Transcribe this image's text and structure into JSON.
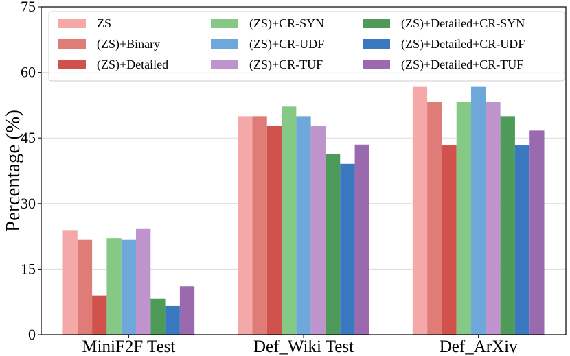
{
  "chart_data": {
    "type": "bar",
    "title": "",
    "xlabel": "",
    "ylabel": "Percentage (%)",
    "ylim": [
      0,
      75
    ],
    "yticks": [
      0,
      15,
      30,
      45,
      60,
      75
    ],
    "grid": true,
    "legend_position": "top",
    "categories": [
      "MiniF2F Test",
      "Def_Wiki Test",
      "Def_ArXiv"
    ],
    "series": [
      {
        "name": "ZS",
        "color": "#f4a9a8",
        "values": [
          23.8,
          50.0,
          56.7
        ]
      },
      {
        "name": "(ZS)+Binary",
        "color": "#e07c78",
        "values": [
          21.7,
          50.0,
          53.3
        ]
      },
      {
        "name": "(ZS)+Detailed",
        "color": "#d1514d",
        "values": [
          9.0,
          47.8,
          43.3
        ]
      },
      {
        "name": "(ZS)+CR-SYN",
        "color": "#86c987",
        "values": [
          22.1,
          52.2,
          53.3
        ]
      },
      {
        "name": "(ZS)+CR-UDF",
        "color": "#6ea8da",
        "values": [
          21.7,
          50.0,
          56.7
        ]
      },
      {
        "name": "(ZS)+CR-TUF",
        "color": "#bf93cc",
        "values": [
          24.2,
          47.8,
          53.3
        ]
      },
      {
        "name": "(ZS)+Detailed+CR-SYN",
        "color": "#4e9b59",
        "values": [
          8.2,
          41.3,
          50.0
        ]
      },
      {
        "name": "(ZS)+Detailed+CR-UDF",
        "color": "#3a79c0",
        "values": [
          6.6,
          39.1,
          43.3
        ]
      },
      {
        "name": "(ZS)+Detailed+CR-TUF",
        "color": "#9b6aae",
        "values": [
          11.1,
          43.5,
          46.7
        ]
      }
    ]
  }
}
